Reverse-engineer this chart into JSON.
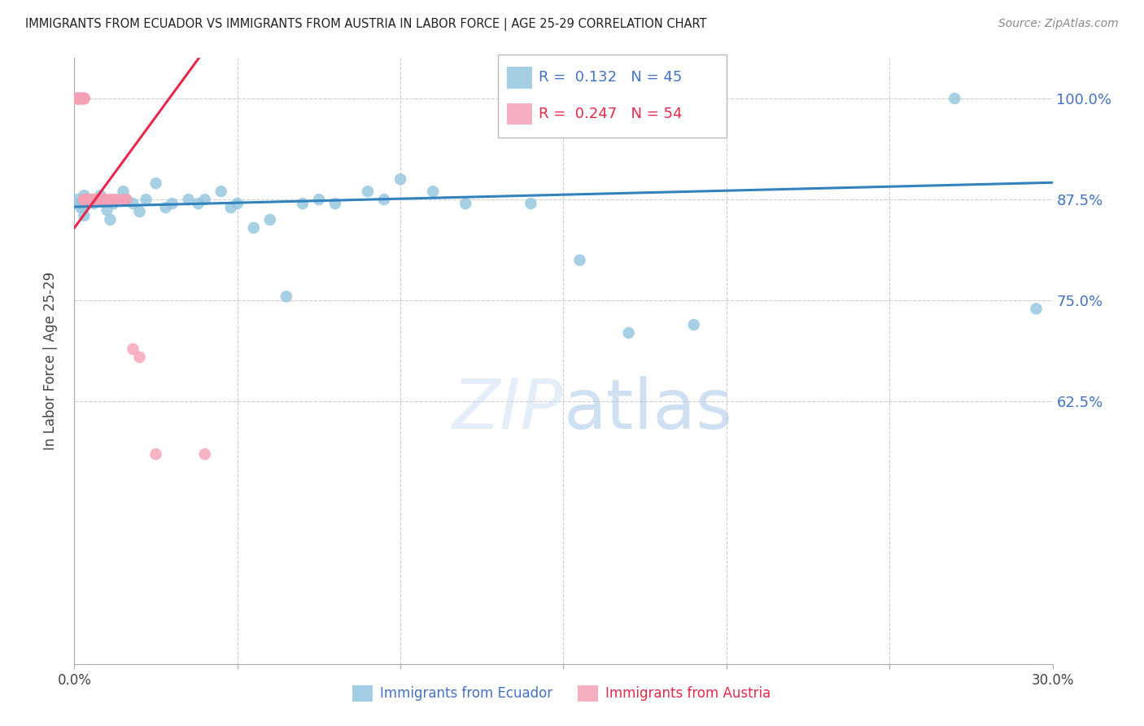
{
  "title": "IMMIGRANTS FROM ECUADOR VS IMMIGRANTS FROM AUSTRIA IN LABOR FORCE | AGE 25-29 CORRELATION CHART",
  "source": "Source: ZipAtlas.com",
  "ylabel": "In Labor Force | Age 25-29",
  "ecuador_color": "#92c5de",
  "austria_color": "#f4a0b5",
  "ecuador_line_color": "#3182bd",
  "austria_line_color": "#e5294b",
  "R_ecuador": 0.132,
  "N_ecuador": 45,
  "R_austria": 0.247,
  "N_austria": 54,
  "xlim": [
    0.0,
    0.3
  ],
  "ylim": [
    0.3,
    1.05
  ],
  "ecuador_x": [
    0.001,
    0.002,
    0.002,
    0.003,
    0.004,
    0.005,
    0.006,
    0.007,
    0.008,
    0.009,
    0.01,
    0.011,
    0.012,
    0.015,
    0.016,
    0.018,
    0.02,
    0.022,
    0.025,
    0.028,
    0.03,
    0.035,
    0.038,
    0.04,
    0.045,
    0.048,
    0.05,
    0.055,
    0.06,
    0.065,
    0.07,
    0.075,
    0.08,
    0.09,
    0.095,
    0.1,
    0.11,
    0.12,
    0.14,
    0.155,
    0.17,
    0.19,
    0.27,
    0.295,
    0.003
  ],
  "ecuador_y": [
    0.875,
    0.87,
    0.865,
    0.88,
    0.87,
    0.875,
    0.87,
    0.875,
    0.88,
    0.875,
    0.862,
    0.85,
    0.87,
    0.885,
    0.875,
    0.87,
    0.86,
    0.875,
    0.895,
    0.865,
    0.87,
    0.875,
    0.87,
    0.875,
    0.885,
    0.865,
    0.87,
    0.84,
    0.85,
    0.755,
    0.87,
    0.875,
    0.87,
    0.885,
    0.875,
    0.9,
    0.885,
    0.87,
    0.87,
    0.8,
    0.71,
    0.72,
    1.0,
    0.74,
    0.855
  ],
  "austria_x": [
    0.001,
    0.001,
    0.001,
    0.001,
    0.001,
    0.001,
    0.001,
    0.001,
    0.001,
    0.001,
    0.001,
    0.001,
    0.002,
    0.002,
    0.002,
    0.002,
    0.002,
    0.002,
    0.002,
    0.002,
    0.003,
    0.003,
    0.003,
    0.003,
    0.003,
    0.003,
    0.003,
    0.003,
    0.003,
    0.003,
    0.004,
    0.004,
    0.004,
    0.004,
    0.005,
    0.005,
    0.005,
    0.006,
    0.006,
    0.007,
    0.007,
    0.008,
    0.008,
    0.009,
    0.01,
    0.011,
    0.012,
    0.013,
    0.015,
    0.016,
    0.018,
    0.02,
    0.025,
    0.04
  ],
  "austria_y": [
    1.0,
    1.0,
    1.0,
    1.0,
    1.0,
    1.0,
    1.0,
    1.0,
    1.0,
    1.0,
    1.0,
    1.0,
    1.0,
    1.0,
    1.0,
    1.0,
    1.0,
    1.0,
    1.0,
    1.0,
    1.0,
    1.0,
    1.0,
    1.0,
    1.0,
    0.875,
    0.875,
    0.875,
    0.875,
    0.875,
    0.875,
    0.875,
    0.875,
    0.875,
    0.875,
    0.875,
    0.875,
    0.875,
    0.875,
    0.875,
    0.875,
    0.875,
    0.875,
    0.875,
    0.875,
    0.875,
    0.875,
    0.875,
    0.875,
    0.875,
    0.69,
    0.68,
    0.56,
    0.56
  ]
}
